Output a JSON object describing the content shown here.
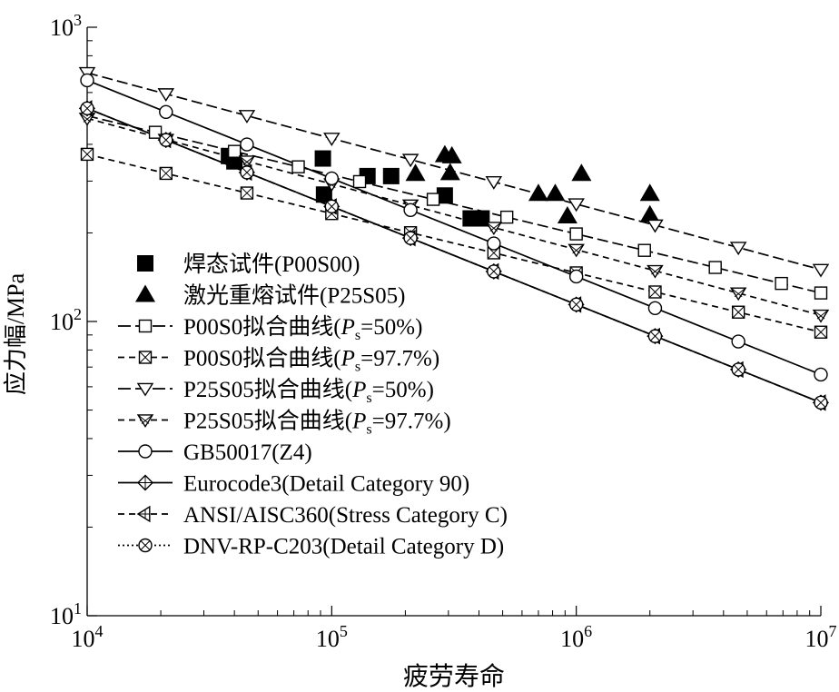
{
  "chart_data": {
    "type": "scatter",
    "xlabel": "疲劳寿命",
    "ylabel": "应力幅/MPa",
    "xscale": "log",
    "yscale": "log",
    "xlim": [
      10000,
      10000000
    ],
    "ylim": [
      10,
      1000
    ],
    "x_ticks": [
      {
        "value": 10000,
        "base": "10",
        "exp": "4"
      },
      {
        "value": 100000,
        "base": "10",
        "exp": "5"
      },
      {
        "value": 1000000,
        "base": "10",
        "exp": "6"
      },
      {
        "value": 10000000,
        "base": "10",
        "exp": "7"
      }
    ],
    "y_ticks": [
      {
        "value": 10,
        "base": "10",
        "exp": "1"
      },
      {
        "value": 100,
        "base": "10",
        "exp": "2"
      },
      {
        "value": 1000,
        "base": "10",
        "exp": "3"
      }
    ],
    "grid": false,
    "legend_position": "left-center",
    "series": [
      {
        "name": "焊态试件(P00S00)",
        "label_parts": [
          "焊态试件(P00S00)"
        ],
        "kind": "scatter",
        "marker": "square-filled",
        "line": "none",
        "color": "#000000",
        "points": [
          [
            38000,
            365
          ],
          [
            40000,
            350
          ],
          [
            92000,
            358
          ],
          [
            93000,
            270
          ],
          [
            140000,
            312
          ],
          [
            175000,
            312
          ],
          [
            290000,
            268
          ],
          [
            370000,
            224
          ],
          [
            410000,
            224
          ]
        ]
      },
      {
        "name": "激光重熔试件(P25S05)",
        "label_parts": [
          "激光重熔试件(P25S05)"
        ],
        "kind": "scatter",
        "marker": "triangle-filled",
        "line": "none",
        "color": "#000000",
        "points": [
          [
            220000,
            318
          ],
          [
            290000,
            368
          ],
          [
            310000,
            365
          ],
          [
            305000,
            320
          ],
          [
            700000,
            272
          ],
          [
            820000,
            272
          ],
          [
            920000,
            228
          ],
          [
            1050000,
            318
          ],
          [
            2000000,
            272
          ],
          [
            2000000,
            230
          ]
        ]
      },
      {
        "name": "P00S0拟合曲线(Ps=50%)",
        "label_parts": [
          "P00S0拟合曲线(",
          "P",
          "s",
          "=50%)"
        ],
        "kind": "line",
        "marker": "square-open",
        "line": "longdash",
        "color": "#000000",
        "x": [
          10000,
          10000000
        ],
        "y": [
          500,
          125
        ],
        "marker_x": [
          19000,
          40000,
          73000,
          130000,
          260000,
          520000,
          1000000,
          1900000,
          3700000,
          6900000,
          10000000
        ]
      },
      {
        "name": "P00S0拟合曲线(Ps=97.7%)",
        "label_parts": [
          "P00S0拟合曲线(",
          "P",
          "s",
          "=97.7%)"
        ],
        "kind": "line",
        "marker": "square-x",
        "line": "dash",
        "color": "#000000",
        "x": [
          10000,
          10000000
        ],
        "y": [
          370,
          92
        ],
        "marker_x": [
          10000,
          21000,
          45000,
          100000,
          210000,
          460000,
          1000000,
          2100000,
          4600000,
          10000000
        ]
      },
      {
        "name": "P25S05拟合曲线(Ps=50%)",
        "label_parts": [
          "P25S05拟合曲线(",
          "P",
          "s",
          "=50%)"
        ],
        "kind": "line",
        "marker": "triangle-down-open",
        "line": "longdash",
        "color": "#000000",
        "x": [
          10000,
          10000000
        ],
        "y": [
          700,
          150
        ],
        "marker_x": [
          10000,
          21000,
          45000,
          100000,
          210000,
          460000,
          1000000,
          2100000,
          4600000,
          10000000
        ]
      },
      {
        "name": "P25S05拟合曲线(Ps=97.7%)",
        "label_parts": [
          "P25S05拟合曲线(",
          "P",
          "s",
          "=97.7%)"
        ],
        "kind": "line",
        "marker": "triangle-down-x",
        "line": "dash",
        "color": "#000000",
        "x": [
          10000,
          10000000
        ],
        "y": [
          490,
          105
        ],
        "marker_x": [
          10000,
          21000,
          45000,
          100000,
          210000,
          460000,
          1000000,
          2100000,
          4600000,
          10000000
        ]
      },
      {
        "name": "GB50017(Z4)",
        "label_parts": [
          "GB50017(Z4)"
        ],
        "kind": "line",
        "marker": "circle-open",
        "line": "solid",
        "color": "#000000",
        "x": [
          10000,
          10000000
        ],
        "y": [
          660,
          66
        ],
        "marker_x": [
          10000,
          21000,
          45000,
          100000,
          210000,
          460000,
          1000000,
          2100000,
          4600000,
          10000000
        ]
      },
      {
        "name": "Eurocode3(Detail Category 90)",
        "label_parts": [
          "Eurocode3(Detail Category 90)"
        ],
        "kind": "line",
        "marker": "diamond-cross",
        "line": "solid",
        "color": "#000000",
        "x": [
          10000,
          10000000
        ],
        "y": [
          530,
          53
        ],
        "marker_x": [
          10000,
          21000,
          45000,
          100000,
          210000,
          460000,
          1000000,
          2100000,
          4600000,
          10000000
        ]
      },
      {
        "name": "ANSI/AISC360(Stress Category C)",
        "label_parts": [
          "ANSI/AISC360(Stress Category C)"
        ],
        "kind": "line",
        "marker": "triangle-left-cross",
        "line": "dash",
        "color": "#000000",
        "x": [
          10000,
          10000000
        ],
        "y": [
          530,
          53
        ],
        "marker_x": [
          10000,
          21000,
          45000,
          100000,
          210000,
          460000,
          1000000,
          2100000,
          4600000,
          10000000
        ]
      },
      {
        "name": "DNV-RP-C203(Detail Category D)",
        "label_parts": [
          "DNV-RP-C203(Detail Category D)"
        ],
        "kind": "line",
        "marker": "circle-x",
        "line": "dot",
        "color": "#000000",
        "x": [
          10000,
          10000000
        ],
        "y": [
          530,
          53
        ],
        "marker_x": [
          10000,
          21000,
          45000,
          100000,
          210000,
          460000,
          1000000,
          2100000,
          4600000,
          10000000
        ]
      }
    ]
  }
}
